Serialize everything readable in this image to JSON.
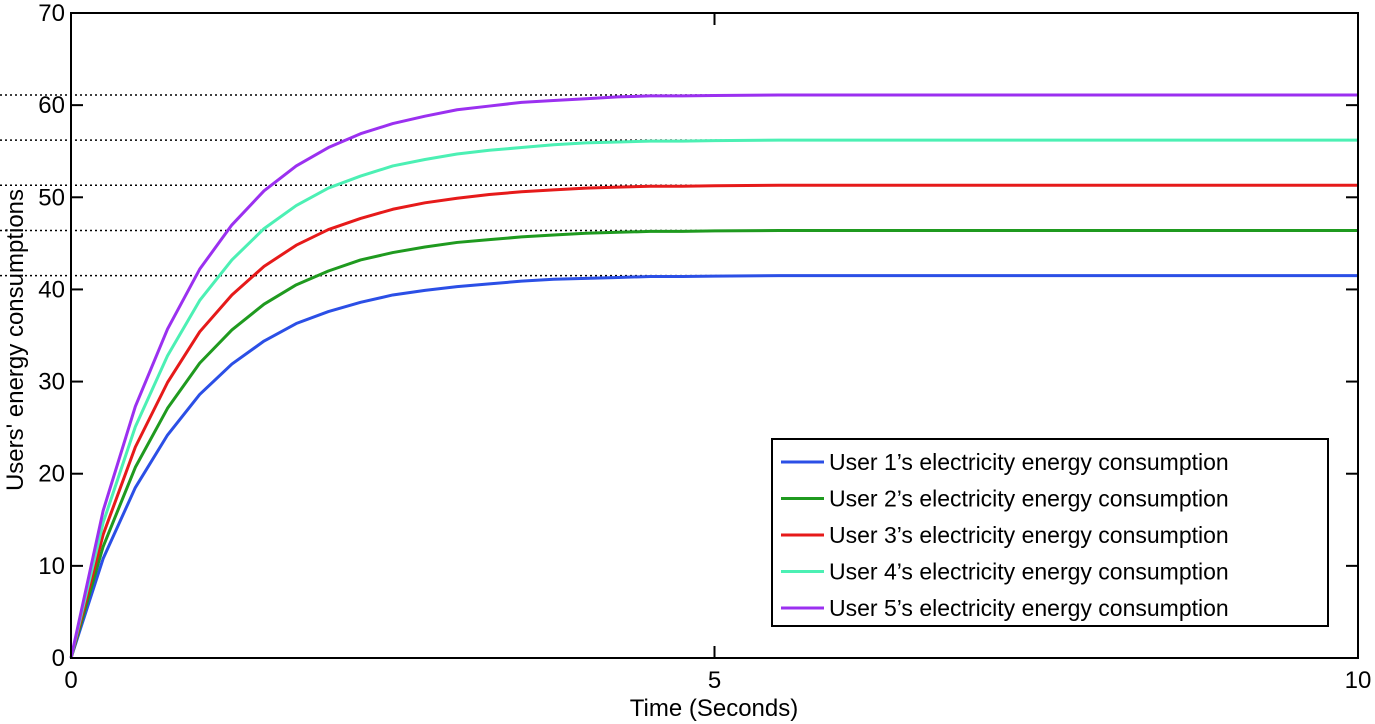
{
  "chart_data": {
    "type": "line",
    "title": "",
    "xlabel": "Time (Seconds)",
    "ylabel": "Users' energy consumptions",
    "xlim": [
      0,
      10
    ],
    "ylim": [
      0,
      70
    ],
    "xticks": [
      0,
      5,
      10
    ],
    "yticks": [
      0,
      10,
      20,
      30,
      40,
      50,
      60,
      70
    ],
    "x_tick_labels": [
      "0",
      "5",
      "10"
    ],
    "y_tick_labels": [
      "0",
      "10",
      "20",
      "30",
      "40",
      "50",
      "60",
      "70"
    ],
    "grid": false,
    "legend_position": "bottom-right",
    "x": [
      0,
      0.25,
      0.5,
      0.75,
      1.0,
      1.25,
      1.5,
      1.75,
      2.0,
      2.25,
      2.5,
      2.75,
      3.0,
      3.25,
      3.5,
      3.75,
      4.0,
      4.25,
      4.5,
      4.75,
      5.0,
      5.5,
      6.0,
      7.0,
      8.0,
      9.0,
      10.0
    ],
    "series": [
      {
        "name": "User 1’s electricity energy consumption",
        "color": "#2b4fe6",
        "steady_state": 41.5,
        "values": [
          0,
          10.8,
          18.5,
          24.2,
          28.6,
          31.9,
          34.4,
          36.3,
          37.6,
          38.6,
          39.4,
          39.9,
          40.3,
          40.6,
          40.9,
          41.1,
          41.2,
          41.3,
          41.4,
          41.4,
          41.45,
          41.5,
          41.5,
          41.5,
          41.5,
          41.5,
          41.5
        ]
      },
      {
        "name": "User 2’s electricity energy consumption",
        "color": "#1f9a1f",
        "steady_state": 46.4,
        "values": [
          0,
          12.1,
          20.7,
          27.1,
          32.0,
          35.6,
          38.4,
          40.5,
          42.0,
          43.2,
          44.0,
          44.6,
          45.1,
          45.4,
          45.7,
          45.9,
          46.1,
          46.2,
          46.3,
          46.3,
          46.35,
          46.4,
          46.4,
          46.4,
          46.4,
          46.4,
          46.4
        ]
      },
      {
        "name": "User 3’s electricity energy consumption",
        "color": "#e61a1a",
        "steady_state": 51.3,
        "values": [
          0,
          13.4,
          22.9,
          29.9,
          35.4,
          39.4,
          42.5,
          44.8,
          46.5,
          47.7,
          48.7,
          49.4,
          49.9,
          50.3,
          50.6,
          50.8,
          51.0,
          51.1,
          51.2,
          51.2,
          51.25,
          51.3,
          51.3,
          51.3,
          51.3,
          51.3,
          51.3
        ]
      },
      {
        "name": "User 4’s electricity energy consumption",
        "color": "#4cf0b4",
        "steady_state": 56.2,
        "values": [
          0,
          14.7,
          25.1,
          32.8,
          38.8,
          43.2,
          46.6,
          49.1,
          51.0,
          52.3,
          53.4,
          54.1,
          54.7,
          55.1,
          55.4,
          55.7,
          55.9,
          56.0,
          56.1,
          56.1,
          56.15,
          56.2,
          56.2,
          56.2,
          56.2,
          56.2,
          56.2
        ]
      },
      {
        "name": "User 5’s electricity energy consumption",
        "color": "#9b30f0",
        "steady_state": 61.1,
        "values": [
          0,
          16.0,
          27.3,
          35.7,
          42.2,
          47.0,
          50.7,
          53.4,
          55.4,
          56.9,
          58.0,
          58.8,
          59.5,
          59.9,
          60.3,
          60.5,
          60.7,
          60.9,
          61.0,
          61.0,
          61.05,
          61.1,
          61.1,
          61.1,
          61.1,
          61.1,
          61.1
        ]
      }
    ]
  }
}
